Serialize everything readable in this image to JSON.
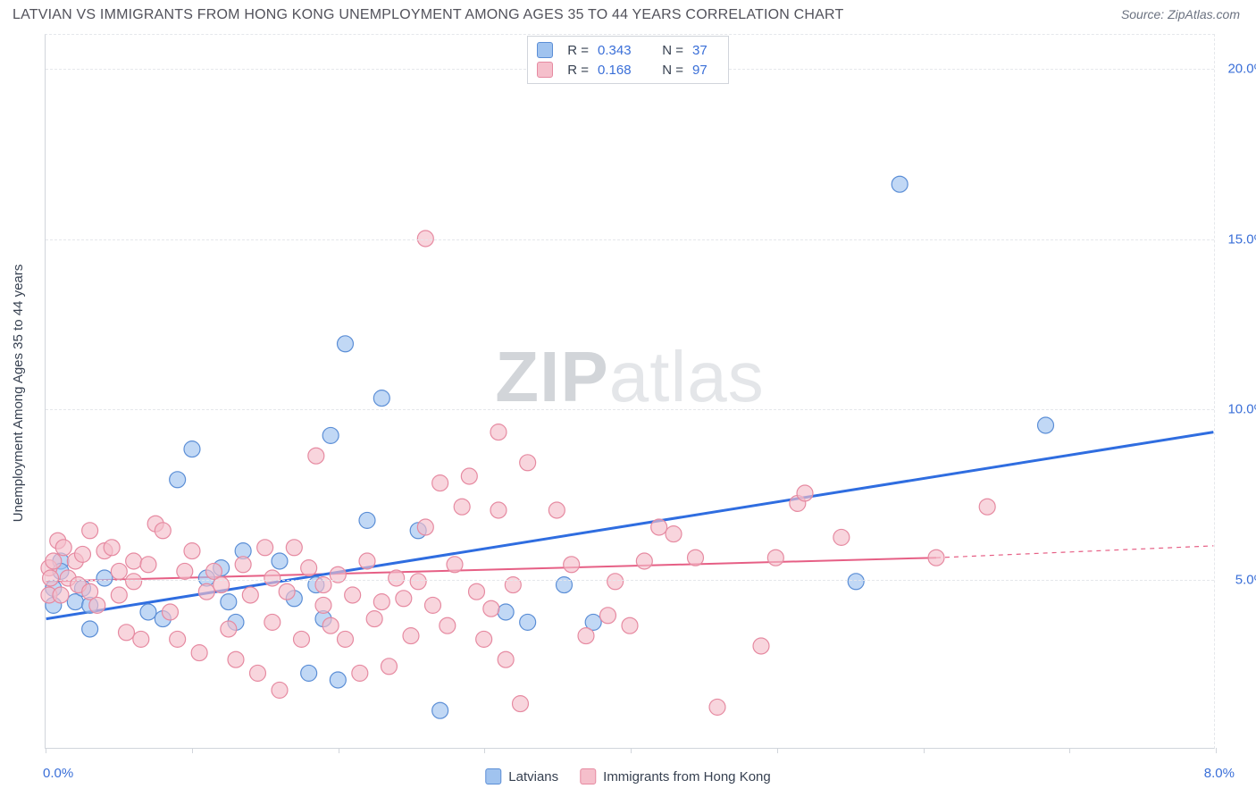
{
  "title": "LATVIAN VS IMMIGRANTS FROM HONG KONG UNEMPLOYMENT AMONG AGES 35 TO 44 YEARS CORRELATION CHART",
  "source": "Source: ZipAtlas.com",
  "ylabel": "Unemployment Among Ages 35 to 44 years",
  "watermark_zip": "ZIP",
  "watermark_atlas": "atlas",
  "chart": {
    "type": "scatter",
    "background_color": "#ffffff",
    "grid_color": "#e5e7eb",
    "axis_color": "#d1d5db",
    "tick_label_color": "#3a6fd8",
    "xlim": [
      0.0,
      8.0
    ],
    "ylim": [
      0.0,
      21.0
    ],
    "xticks": [
      0.0,
      1.0,
      2.0,
      3.0,
      4.0,
      5.0,
      6.0,
      7.0,
      8.0
    ],
    "xtick_labels": {
      "0": "0.0%",
      "8": "8.0%"
    },
    "yticks": [
      5.0,
      10.0,
      15.0,
      20.0
    ],
    "ytick_labels": [
      "5.0%",
      "10.0%",
      "15.0%",
      "20.0%"
    ],
    "marker_radius": 9,
    "line_width_blue": 3,
    "line_width_pink_solid": 2,
    "line_width_pink_dashed": 1.2,
    "series": [
      {
        "name": "Latvians",
        "legend_label": "Latvians",
        "fill": "#a0c3ef",
        "stroke": "#5b8ed6",
        "line_color": "#2f6de0",
        "R": "0.343",
        "N": "37",
        "trend": {
          "x1": 0.0,
          "y1": 3.8,
          "x2": 8.0,
          "y2": 9.3
        },
        "points": [
          [
            0.05,
            4.7
          ],
          [
            0.05,
            4.2
          ],
          [
            0.1,
            5.5
          ],
          [
            0.1,
            5.2
          ],
          [
            0.2,
            4.3
          ],
          [
            0.25,
            4.7
          ],
          [
            0.3,
            4.2
          ],
          [
            0.3,
            3.5
          ],
          [
            0.4,
            5.0
          ],
          [
            0.9,
            7.9
          ],
          [
            1.0,
            8.8
          ],
          [
            0.7,
            4.0
          ],
          [
            0.8,
            3.8
          ],
          [
            1.1,
            5.0
          ],
          [
            1.2,
            5.3
          ],
          [
            1.25,
            4.3
          ],
          [
            1.3,
            3.7
          ],
          [
            1.35,
            5.8
          ],
          [
            1.6,
            5.5
          ],
          [
            1.7,
            4.4
          ],
          [
            1.8,
            2.2
          ],
          [
            1.85,
            4.8
          ],
          [
            1.9,
            3.8
          ],
          [
            1.95,
            9.2
          ],
          [
            2.05,
            11.9
          ],
          [
            2.0,
            2.0
          ],
          [
            2.2,
            6.7
          ],
          [
            2.3,
            10.3
          ],
          [
            2.55,
            6.4
          ],
          [
            2.7,
            1.1
          ],
          [
            3.15,
            4.0
          ],
          [
            3.3,
            3.7
          ],
          [
            3.55,
            4.8
          ],
          [
            3.75,
            3.7
          ],
          [
            5.55,
            4.9
          ],
          [
            5.85,
            16.6
          ],
          [
            6.85,
            9.5
          ]
        ]
      },
      {
        "name": "Immigrants from Hong Kong",
        "legend_label": "Immigrants from Hong Kong",
        "fill": "#f5bfcb",
        "stroke": "#e68aa1",
        "line_color": "#e65f85",
        "R": "0.168",
        "N": "97",
        "trend_solid": {
          "x1": 0.0,
          "y1": 4.9,
          "x2": 6.1,
          "y2": 5.6
        },
        "trend_dashed": {
          "x1": 6.1,
          "y1": 5.6,
          "x2": 8.0,
          "y2": 5.95
        },
        "points": [
          [
            0.02,
            5.3
          ],
          [
            0.02,
            4.5
          ],
          [
            0.03,
            5.0
          ],
          [
            0.05,
            5.5
          ],
          [
            0.08,
            6.1
          ],
          [
            0.1,
            4.5
          ],
          [
            0.12,
            5.9
          ],
          [
            0.15,
            5.0
          ],
          [
            0.2,
            5.5
          ],
          [
            0.22,
            4.8
          ],
          [
            0.25,
            5.7
          ],
          [
            0.3,
            4.6
          ],
          [
            0.3,
            6.4
          ],
          [
            0.35,
            4.2
          ],
          [
            0.4,
            5.8
          ],
          [
            0.45,
            5.9
          ],
          [
            0.5,
            5.2
          ],
          [
            0.5,
            4.5
          ],
          [
            0.55,
            3.4
          ],
          [
            0.6,
            4.9
          ],
          [
            0.6,
            5.5
          ],
          [
            0.65,
            3.2
          ],
          [
            0.7,
            5.4
          ],
          [
            0.75,
            6.6
          ],
          [
            0.8,
            6.4
          ],
          [
            0.85,
            4.0
          ],
          [
            0.9,
            3.2
          ],
          [
            0.95,
            5.2
          ],
          [
            1.0,
            5.8
          ],
          [
            1.05,
            2.8
          ],
          [
            1.1,
            4.6
          ],
          [
            1.15,
            5.2
          ],
          [
            1.2,
            4.8
          ],
          [
            1.25,
            3.5
          ],
          [
            1.3,
            2.6
          ],
          [
            1.35,
            5.4
          ],
          [
            1.4,
            4.5
          ],
          [
            1.45,
            2.2
          ],
          [
            1.5,
            5.9
          ],
          [
            1.55,
            3.7
          ],
          [
            1.55,
            5.0
          ],
          [
            1.6,
            1.7
          ],
          [
            1.65,
            4.6
          ],
          [
            1.7,
            5.9
          ],
          [
            1.75,
            3.2
          ],
          [
            1.8,
            5.3
          ],
          [
            1.85,
            8.6
          ],
          [
            1.9,
            4.2
          ],
          [
            1.9,
            4.8
          ],
          [
            1.95,
            3.6
          ],
          [
            2.0,
            5.1
          ],
          [
            2.05,
            3.2
          ],
          [
            2.1,
            4.5
          ],
          [
            2.15,
            2.2
          ],
          [
            2.2,
            5.5
          ],
          [
            2.25,
            3.8
          ],
          [
            2.3,
            4.3
          ],
          [
            2.35,
            2.4
          ],
          [
            2.4,
            5.0
          ],
          [
            2.45,
            4.4
          ],
          [
            2.5,
            3.3
          ],
          [
            2.55,
            4.9
          ],
          [
            2.6,
            6.5
          ],
          [
            2.6,
            15.0
          ],
          [
            2.65,
            4.2
          ],
          [
            2.7,
            7.8
          ],
          [
            2.75,
            3.6
          ],
          [
            2.8,
            5.4
          ],
          [
            2.85,
            7.1
          ],
          [
            2.9,
            8.0
          ],
          [
            2.95,
            4.6
          ],
          [
            3.0,
            3.2
          ],
          [
            3.05,
            4.1
          ],
          [
            3.1,
            7.0
          ],
          [
            3.1,
            9.3
          ],
          [
            3.15,
            2.6
          ],
          [
            3.2,
            4.8
          ],
          [
            3.25,
            1.3
          ],
          [
            3.3,
            8.4
          ],
          [
            3.5,
            7.0
          ],
          [
            3.6,
            5.4
          ],
          [
            3.7,
            3.3
          ],
          [
            3.85,
            3.9
          ],
          [
            3.9,
            4.9
          ],
          [
            4.0,
            3.6
          ],
          [
            4.1,
            5.5
          ],
          [
            4.2,
            6.5
          ],
          [
            4.3,
            6.3
          ],
          [
            4.45,
            5.6
          ],
          [
            4.6,
            1.2
          ],
          [
            4.9,
            3.0
          ],
          [
            5.0,
            5.6
          ],
          [
            5.15,
            7.2
          ],
          [
            5.2,
            7.5
          ],
          [
            6.45,
            7.1
          ],
          [
            6.1,
            5.6
          ],
          [
            5.45,
            6.2
          ]
        ]
      }
    ]
  },
  "legend_top": {
    "r_label": "R =",
    "n_label": "N ="
  },
  "legend_bottom": {
    "items": [
      "Latvians",
      "Immigrants from Hong Kong"
    ]
  }
}
